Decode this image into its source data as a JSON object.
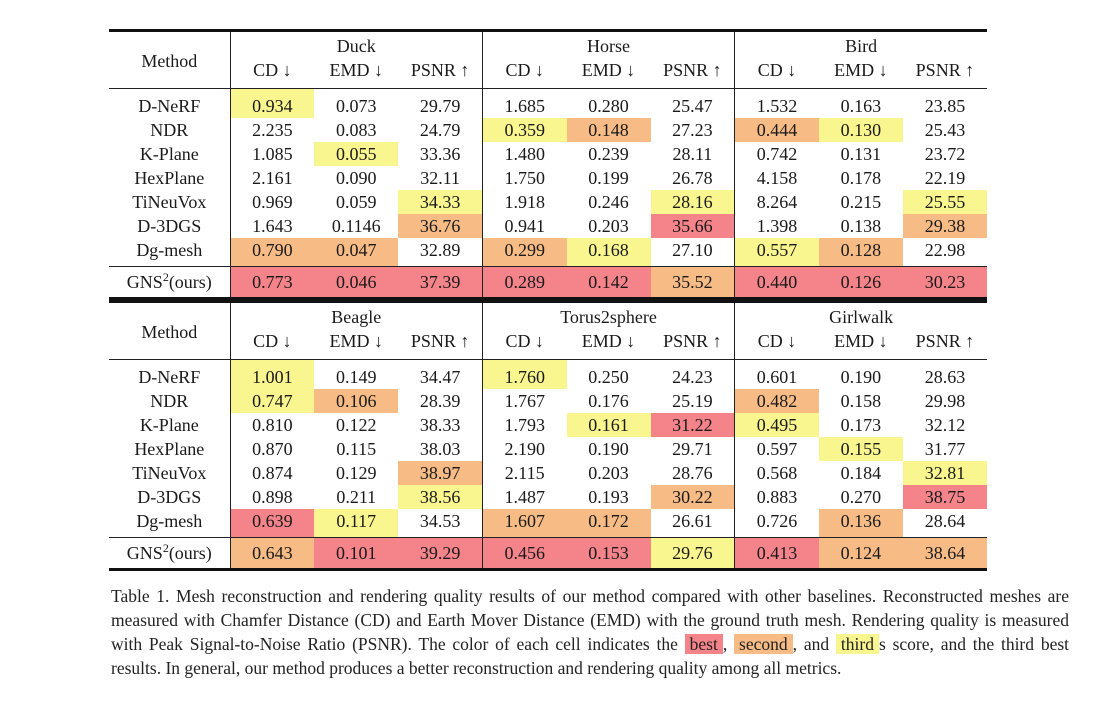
{
  "panels": [
    {
      "datasets": [
        "Duck",
        "Horse",
        "Bird"
      ],
      "method_header": "Method",
      "metrics": [
        "CD ↓",
        "EMD ↓",
        "PSNR ↑",
        "CD ↓",
        "EMD ↓",
        "PSNR ↑",
        "CD ↓",
        "EMD ↓",
        "PSNR ↑"
      ],
      "rows": [
        {
          "method": "D-NeRF",
          "values": [
            "0.934",
            "0.073",
            "29.79",
            "1.685",
            "0.280",
            "25.47",
            "1.532",
            "0.163",
            "23.85"
          ]
        },
        {
          "method": "NDR",
          "values": [
            "2.235",
            "0.083",
            "24.79",
            "0.359",
            "0.148",
            "27.23",
            "0.444",
            "0.130",
            "25.43"
          ]
        },
        {
          "method": "K-Plane",
          "values": [
            "1.085",
            "0.055",
            "33.36",
            "1.480",
            "0.239",
            "28.11",
            "0.742",
            "0.131",
            "23.72"
          ]
        },
        {
          "method": "HexPlane",
          "values": [
            "2.161",
            "0.090",
            "32.11",
            "1.750",
            "0.199",
            "26.78",
            "4.158",
            "0.178",
            "22.19"
          ]
        },
        {
          "method": "TiNeuVox",
          "values": [
            "0.969",
            "0.059",
            "34.33",
            "1.918",
            "0.246",
            "28.16",
            "8.264",
            "0.215",
            "25.55"
          ]
        },
        {
          "method": "D-3DGS",
          "values": [
            "1.643",
            "0.1146",
            "36.76",
            "0.941",
            "0.203",
            "35.66",
            "1.398",
            "0.138",
            "29.38"
          ]
        },
        {
          "method": "Dg-mesh",
          "values": [
            "0.790",
            "0.047",
            "32.89",
            "0.299",
            "0.168",
            "27.10",
            "0.557",
            "0.128",
            "22.98"
          ]
        }
      ],
      "ours": {
        "method_base": "GNS",
        "method_sup": "2",
        "method_suffix": "(ours)",
        "values": [
          "0.773",
          "0.046",
          "37.39",
          "0.289",
          "0.142",
          "35.52",
          "0.440",
          "0.126",
          "30.23"
        ]
      }
    },
    {
      "datasets": [
        "Beagle",
        "Torus2sphere",
        "Girlwalk"
      ],
      "method_header": "Method",
      "metrics": [
        "CD ↓",
        "EMD ↓",
        "PSNR ↑",
        "CD ↓",
        "EMD ↓",
        "PSNR ↑",
        "CD ↓",
        "EMD ↓",
        "PSNR ↑"
      ],
      "rows": [
        {
          "method": "D-NeRF",
          "values": [
            "1.001",
            "0.149",
            "34.47",
            "1.760",
            "0.250",
            "24.23",
            "0.601",
            "0.190",
            "28.63"
          ]
        },
        {
          "method": "NDR",
          "values": [
            "0.747",
            "0.106",
            "28.39",
            "1.767",
            "0.176",
            "25.19",
            "0.482",
            "0.158",
            "29.98"
          ]
        },
        {
          "method": "K-Plane",
          "values": [
            "0.810",
            "0.122",
            "38.33",
            "1.793",
            "0.161",
            "31.22",
            "0.495",
            "0.173",
            "32.12"
          ]
        },
        {
          "method": "HexPlane",
          "values": [
            "0.870",
            "0.115",
            "38.03",
            "2.190",
            "0.190",
            "29.71",
            "0.597",
            "0.155",
            "31.77"
          ]
        },
        {
          "method": "TiNeuVox",
          "values": [
            "0.874",
            "0.129",
            "38.97",
            "2.115",
            "0.203",
            "28.76",
            "0.568",
            "0.184",
            "32.81"
          ]
        },
        {
          "method": "D-3DGS",
          "values": [
            "0.898",
            "0.211",
            "38.56",
            "1.487",
            "0.193",
            "30.22",
            "0.883",
            "0.270",
            "38.75"
          ]
        },
        {
          "method": "Dg-mesh",
          "values": [
            "0.639",
            "0.117",
            "34.53",
            "1.607",
            "0.172",
            "26.61",
            "0.726",
            "0.136",
            "28.64"
          ]
        }
      ],
      "ours": {
        "method_base": "GNS",
        "method_sup": "2",
        "method_suffix": "(ours)",
        "values": [
          "0.643",
          "0.101",
          "39.29",
          "0.456",
          "0.153",
          "29.76",
          "0.413",
          "0.124",
          "38.64"
        ]
      }
    }
  ],
  "highlight_colors": {
    "best": "#f4838a",
    "second": "#f7bb86",
    "third": "#f9f58f"
  },
  "caption": {
    "label": "Table 1.",
    "text_1": "Mesh reconstruction and rendering quality results of our method compared with other baselines. Reconstructed meshes are measured with Chamfer Distance (CD) and Earth Mover Distance (EMD) with the ground truth mesh. Rendering quality is measured with Peak Signal-to-Noise Ratio (PSNR). The color of each cell indicates the",
    "best_word": "best",
    "sep_1": ",",
    "second_word": "second",
    "sep_2": ", and",
    "third_word": "third",
    "text_2": "s score, and the third best results. In general, our method produces a better reconstruction and rendering quality among all metrics."
  }
}
